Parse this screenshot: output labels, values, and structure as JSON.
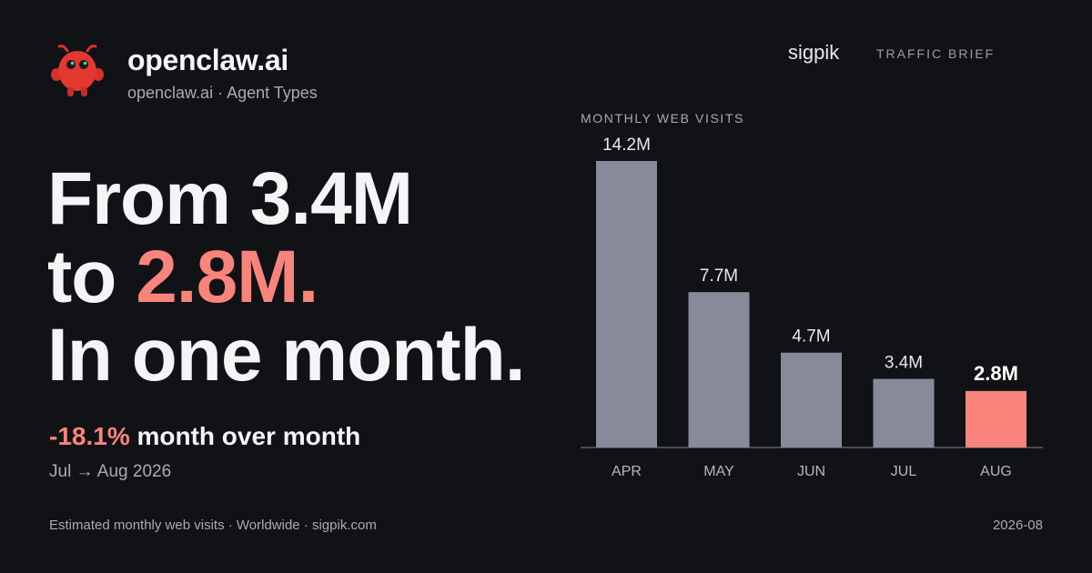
{
  "brand": {
    "name": "openclaw.ai",
    "subtitle": "openclaw.ai · Agent Types",
    "logo_icon": "red-claw-mascot-icon"
  },
  "header": {
    "publisher": "sigpik",
    "tag": "TRAFFIC BRIEF"
  },
  "headline": {
    "line1": "From 3.4M",
    "line2_prefix": "to ",
    "line2_accent": "2.8M.",
    "line3": "In one month."
  },
  "change": {
    "pct": "-18.1%",
    "label": " month over month",
    "period": "Jul → Aug 2026"
  },
  "footer": {
    "source": "Estimated monthly web visits · Worldwide · sigpik.com",
    "date": "2026-08"
  },
  "colors": {
    "background": "#111215",
    "bar": "#878b99",
    "highlight": "#f8847c",
    "axis": "#5a5c63"
  },
  "chart_data": {
    "type": "bar",
    "title": "MONTHLY WEB VISITS",
    "categories": [
      "APR",
      "MAY",
      "JUN",
      "JUL",
      "AUG"
    ],
    "values": [
      14.2,
      7.7,
      4.7,
      3.4,
      2.8
    ],
    "labels": [
      "14.2M",
      "7.7M",
      "4.7M",
      "3.4M",
      "2.8M"
    ],
    "highlight_index": 4,
    "unit": "M",
    "grid": false
  }
}
